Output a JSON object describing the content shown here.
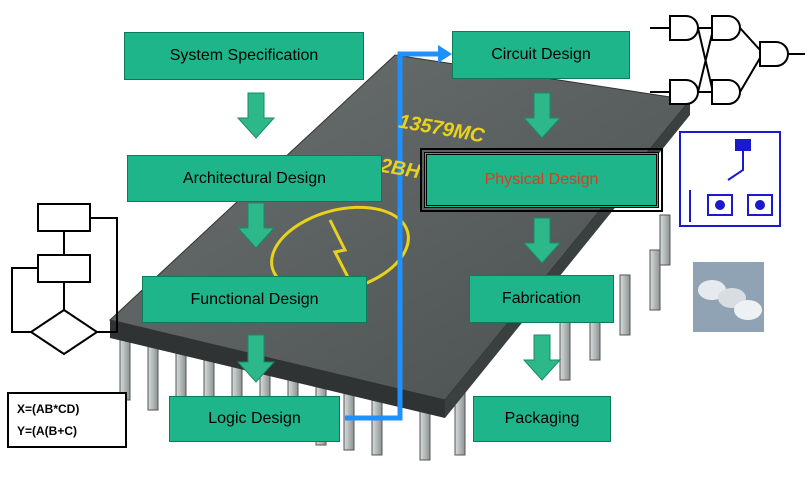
{
  "steps": {
    "system_spec": "System Specification",
    "architectural": "Architectural Design",
    "functional": "Functional Design",
    "logic": "Logic Design",
    "circuit": "Circuit Design",
    "physical": "Physical Design",
    "fabrication": "Fabrication",
    "packaging": "Packaging"
  },
  "chip": {
    "marking_1": "13579MC",
    "marking_2": "2BH"
  },
  "equations": {
    "line1": "X=(AB*CD)",
    "line2": "Y=(A(B+C)"
  },
  "colors": {
    "box_fill": "#1fb58a",
    "arrow": "#2db88a",
    "flow_line": "#1e90ff",
    "physical_text": "#e03a1c",
    "schematic": "#1a1acc"
  }
}
